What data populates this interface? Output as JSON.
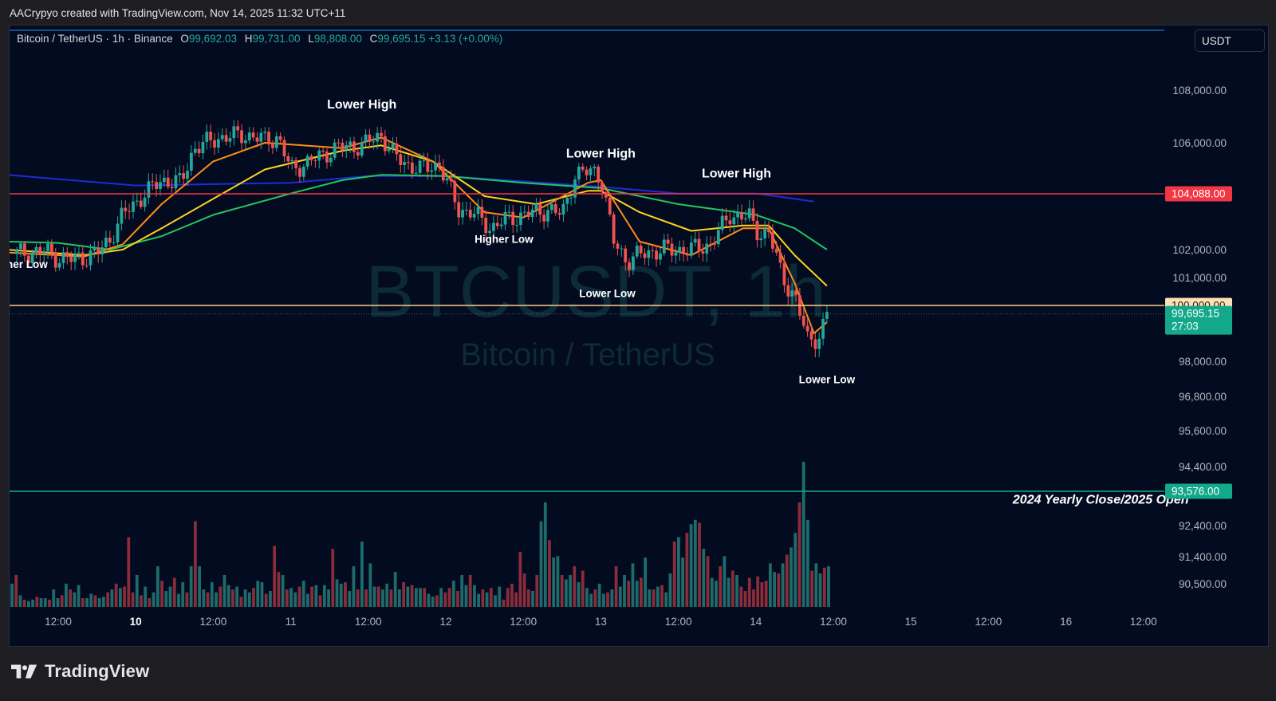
{
  "header": {
    "attribution": "AACrypyo created with TradingView.com, Nov 14, 2025 11:32 UTC+11"
  },
  "legend": {
    "symbol": "Bitcoin / TetherUS · 1h · Binance",
    "open_label": "O",
    "open": "99,692.03",
    "high_label": "H",
    "high": "99,731.00",
    "low_label": "L",
    "low": "98,808.00",
    "close_label": "C",
    "close": "99,695.15",
    "change": "+3.13 (+0.00%)"
  },
  "currency": "USDT",
  "watermark": {
    "ticker": "BTCUSDT, 1h",
    "name": "Bitcoin / TetherUS"
  },
  "footer": {
    "brand": "TradingView"
  },
  "colors": {
    "background": "#020b20",
    "up": "#26a69a",
    "down": "#ef5350",
    "ema_fast": "#ff8c1a",
    "ema_mid": "#ffd21f",
    "ema_slow": "#22c55e",
    "ma_long": "#1e2bd9",
    "resistance": "#f23645",
    "round": "#ffcc80",
    "yearly": "#14a88a"
  },
  "chart_data": {
    "type": "candlestick",
    "title": "Bitcoin / TetherUS · 1h · Binance",
    "y_tick_labels": [
      "108,000.00",
      "106,000.00",
      "102,000.00",
      "101,000.00",
      "98,000.00",
      "96,800.00",
      "95,600.00",
      "94,400.00",
      "92,400.00",
      "91,400.00",
      "90,500.00"
    ],
    "y_ticks": [
      108000,
      106000,
      102000,
      101000,
      98000,
      96800,
      95600,
      94400,
      92400,
      91400,
      90500
    ],
    "x_tick_labels": [
      "12:00",
      "10",
      "12:00",
      "11",
      "12:00",
      "12",
      "12:00",
      "13",
      "12:00",
      "14",
      "12:00",
      "15",
      "12:00",
      "16",
      "12:00"
    ],
    "x_ticks": [
      "2025-11-09 12:00",
      "2025-11-10 00:00",
      "2025-11-10 12:00",
      "2025-11-11 00:00",
      "2025-11-11 12:00",
      "2025-11-12 00:00",
      "2025-11-12 12:00",
      "2025-11-13 00:00",
      "2025-11-13 12:00",
      "2025-11-14 00:00",
      "2025-11-14 12:00",
      "2025-11-15 00:00",
      "2025-11-15 12:00",
      "2025-11-16 00:00",
      "2025-11-16 12:00"
    ],
    "x_bold_ticks": [
      "10"
    ],
    "candle_close_path": [
      [
        "2025-11-09 05:00",
        101850
      ],
      [
        "2025-11-09 10:00",
        101950
      ],
      [
        "2025-11-09 12:00",
        101700
      ],
      [
        "2025-11-09 14:00",
        101650
      ],
      [
        "2025-11-09 18:00",
        101850
      ],
      [
        "2025-11-09 20:00",
        102400
      ],
      [
        "2025-11-09 22:00",
        103300
      ],
      [
        "2025-11-10 01:00",
        104000
      ],
      [
        "2025-11-10 04:00",
        104600
      ],
      [
        "2025-11-10 07:00",
        104500
      ],
      [
        "2025-11-10 09:00",
        105800
      ],
      [
        "2025-11-10 13:00",
        106200
      ],
      [
        "2025-11-10 17:00",
        106300
      ],
      [
        "2025-11-10 20:00",
        106100
      ],
      [
        "2025-11-10 22:00",
        106200
      ],
      [
        "2025-11-11 00:00",
        105000
      ],
      [
        "2025-11-11 03:00",
        105300
      ],
      [
        "2025-11-11 07:00",
        105800
      ],
      [
        "2025-11-11 11:00",
        105900
      ],
      [
        "2025-11-11 14:00",
        106300
      ],
      [
        "2025-11-11 16:00",
        105500
      ],
      [
        "2025-11-11 18:00",
        105200
      ],
      [
        "2025-11-11 20:00",
        105000
      ],
      [
        "2025-11-11 23:00",
        105200
      ],
      [
        "2025-11-12 00:00",
        104600
      ],
      [
        "2025-11-12 02:00",
        103500
      ],
      [
        "2025-11-12 04:00",
        103400
      ],
      [
        "2025-11-12 07:00",
        102800
      ],
      [
        "2025-11-12 09:00",
        103100
      ],
      [
        "2025-11-12 12:00",
        103300
      ],
      [
        "2025-11-12 16:00",
        103500
      ],
      [
        "2025-11-12 18:00",
        103300
      ],
      [
        "2025-11-12 20:00",
        104800
      ],
      [
        "2025-11-12 23:00",
        104950
      ],
      [
        "2025-11-13 00:00",
        104700
      ],
      [
        "2025-11-13 02:00",
        102300
      ],
      [
        "2025-11-13 04:00",
        101600
      ],
      [
        "2025-11-13 07:00",
        101900
      ],
      [
        "2025-11-13 10:00",
        102000
      ],
      [
        "2025-11-13 14:00",
        102000
      ],
      [
        "2025-11-13 17:00",
        102200
      ],
      [
        "2025-11-13 20:00",
        103300
      ],
      [
        "2025-11-13 23:00",
        103200
      ],
      [
        "2025-11-14 00:00",
        102700
      ],
      [
        "2025-11-14 02:00",
        102600
      ],
      [
        "2025-11-14 04:00",
        101100
      ],
      [
        "2025-11-14 06:00",
        100300
      ],
      [
        "2025-11-14 08:00",
        98800
      ],
      [
        "2025-11-14 10:00",
        98900
      ],
      [
        "2025-11-14 11:00",
        99695
      ]
    ],
    "series": [
      {
        "name": "",
        "role": "ma_long",
        "points": [
          [
            "2025-11-09 04:00",
            104800
          ],
          [
            "2025-11-10 00:00",
            104400
          ],
          [
            "2025-11-11 00:00",
            104500
          ],
          [
            "2025-11-11 12:00",
            104750
          ],
          [
            "2025-11-12 00:00",
            104750
          ],
          [
            "2025-11-13 00:00",
            104350
          ],
          [
            "2025-11-13 12:00",
            104100
          ],
          [
            "2025-11-14 00:00",
            104100
          ],
          [
            "2025-11-14 09:00",
            103800
          ]
        ]
      },
      {
        "name": "",
        "role": "ema_slow",
        "points": [
          [
            "2025-11-09 04:00",
            102300
          ],
          [
            "2025-11-09 12:00",
            102250
          ],
          [
            "2025-11-09 20:00",
            102000
          ],
          [
            "2025-11-10 04:00",
            102500
          ],
          [
            "2025-11-10 12:00",
            103300
          ],
          [
            "2025-11-11 00:00",
            104100
          ],
          [
            "2025-11-11 08:00",
            104600
          ],
          [
            "2025-11-11 14:00",
            104800
          ],
          [
            "2025-11-12 00:00",
            104750
          ],
          [
            "2025-11-12 12:00",
            104500
          ],
          [
            "2025-11-13 00:00",
            104300
          ],
          [
            "2025-11-13 12:00",
            103700
          ],
          [
            "2025-11-14 00:00",
            103300
          ],
          [
            "2025-11-14 06:00",
            102800
          ],
          [
            "2025-11-14 11:00",
            102000
          ]
        ]
      },
      {
        "name": "",
        "role": "ema_mid",
        "points": [
          [
            "2025-11-09 04:00",
            102000
          ],
          [
            "2025-11-09 16:00",
            101800
          ],
          [
            "2025-11-09 22:00",
            102000
          ],
          [
            "2025-11-10 04:00",
            102800
          ],
          [
            "2025-11-10 12:00",
            103900
          ],
          [
            "2025-11-10 20:00",
            105000
          ],
          [
            "2025-11-11 08:00",
            105700
          ],
          [
            "2025-11-11 14:00",
            105900
          ],
          [
            "2025-11-11 22:00",
            105300
          ],
          [
            "2025-11-12 06:00",
            104000
          ],
          [
            "2025-11-12 14:00",
            103700
          ],
          [
            "2025-11-12 22:00",
            104200
          ],
          [
            "2025-11-13 00:00",
            104200
          ],
          [
            "2025-11-13 06:00",
            103400
          ],
          [
            "2025-11-13 14:00",
            102700
          ],
          [
            "2025-11-13 22:00",
            102900
          ],
          [
            "2025-11-14 02:00",
            102900
          ],
          [
            "2025-11-14 06:00",
            101800
          ],
          [
            "2025-11-14 11:00",
            100700
          ]
        ]
      },
      {
        "name": "",
        "role": "ema_fast",
        "points": [
          [
            "2025-11-09 04:00",
            101900
          ],
          [
            "2025-11-09 16:00",
            101750
          ],
          [
            "2025-11-09 22:00",
            102200
          ],
          [
            "2025-11-10 04:00",
            103700
          ],
          [
            "2025-11-10 12:00",
            105300
          ],
          [
            "2025-11-10 20:00",
            106000
          ],
          [
            "2025-11-11 08:00",
            105800
          ],
          [
            "2025-11-11 14:00",
            106200
          ],
          [
            "2025-11-11 22:00",
            105300
          ],
          [
            "2025-11-12 06:00",
            103400
          ],
          [
            "2025-11-12 12:00",
            103200
          ],
          [
            "2025-11-12 22:00",
            104500
          ],
          [
            "2025-11-13 00:00",
            104600
          ],
          [
            "2025-11-13 06:00",
            102300
          ],
          [
            "2025-11-13 14:00",
            101800
          ],
          [
            "2025-11-13 22:00",
            102800
          ],
          [
            "2025-11-14 02:00",
            102800
          ],
          [
            "2025-11-14 06:00",
            100800
          ],
          [
            "2025-11-14 09:00",
            99000
          ],
          [
            "2025-11-14 11:00",
            99400
          ]
        ]
      }
    ],
    "volume_relative": [
      0.16,
      0.22,
      0.08,
      0.05,
      0.04,
      0.05,
      0.07,
      0.06,
      0.06,
      0.05,
      0.12,
      0.06,
      0.08,
      0.16,
      0.12,
      0.1,
      0.15,
      0.06,
      0.06,
      0.09,
      0.08,
      0.06,
      0.07,
      0.1,
      0.12,
      0.16,
      0.13,
      0.14,
      0.48,
      0.1,
      0.22,
      0.08,
      0.14,
      0.06,
      0.1,
      0.28,
      0.18,
      0.11,
      0.14,
      0.2,
      0.09,
      0.17,
      0.1,
      0.28,
      0.59,
      0.28,
      0.12,
      0.1,
      0.17,
      0.1,
      0.14,
      0.22,
      0.15,
      0.12,
      0.14,
      0.07,
      0.12,
      0.1,
      0.13,
      0.18,
      0.17,
      0.09,
      0.11,
      0.42,
      0.24,
      0.22,
      0.12,
      0.13,
      0.1,
      0.14,
      0.18,
      0.09,
      0.14,
      0.15,
      0.08,
      0.15,
      0.12,
      0.4,
      0.19,
      0.16,
      0.17,
      0.11,
      0.28,
      0.12,
      0.45,
      0.12,
      0.3,
      0.14,
      0.14,
      0.12,
      0.16,
      0.12,
      0.24,
      0.12,
      0.17,
      0.14,
      0.15,
      0.13,
      0.13,
      0.13,
      0.09,
      0.07,
      0.08,
      0.13,
      0.1,
      0.13,
      0.18,
      0.11,
      0.22,
      0.15,
      0.22,
      0.15,
      0.09,
      0.12,
      0.1,
      0.13,
      0.08,
      0.14,
      0.05,
      0.13,
      0.16,
      0.1,
      0.38,
      0.23,
      0.12,
      0.11,
      0.22,
      0.59,
      0.72,
      0.46,
      0.34,
      0.35,
      0.22,
      0.19,
      0.22,
      0.28,
      0.17,
      0.25,
      0.13,
      0.09,
      0.12,
      0.16,
      0.09,
      0.1,
      0.12,
      0.28,
      0.14,
      0.22,
      0.18,
      0.3,
      0.18,
      0.2,
      0.34,
      0.12,
      0.12,
      0.14,
      0.15,
      0.1,
      0.23,
      0.45,
      0.48,
      0.34,
      0.51,
      0.57,
      0.6,
      0.58,
      0.4,
      0.35,
      0.2,
      0.18,
      0.28,
      0.35,
      0.2,
      0.25,
      0.22,
      0.14,
      0.11,
      0.2,
      0.12,
      0.21,
      0.17,
      0.18,
      0.3,
      0.24,
      0.23,
      0.3,
      0.36,
      0.41,
      0.51,
      0.72,
      1.0,
      0.6,
      0.25,
      0.3,
      0.23,
      0.27,
      0.28
    ],
    "price_labels": [
      {
        "value": 104088,
        "text": "104,088.00",
        "role": "resistance"
      },
      {
        "value": 100000,
        "text": "100,000.00",
        "role": "round"
      },
      {
        "value": 99695.15,
        "text": "99,695.15",
        "sub": "27:03",
        "role": "last"
      },
      {
        "value": 93576,
        "text": "93,576.00",
        "role": "yearly"
      }
    ],
    "horizontal_lines": [
      {
        "value": 104088,
        "role": "resistance"
      },
      {
        "value": 100000,
        "role": "round"
      },
      {
        "value": 93576,
        "role": "yearly"
      }
    ],
    "annotations": [
      {
        "text": "Lower High",
        "x": "2025-11-11 11:00",
        "y": 107300,
        "size": "large"
      },
      {
        "text": "Lower High",
        "x": "2025-11-13 00:00",
        "y": 105450,
        "size": "large"
      },
      {
        "text": "Lower High",
        "x": "2025-11-13 21:00",
        "y": 104700,
        "size": "large"
      },
      {
        "text": "Higher Low",
        "x": "2025-11-12 09:00",
        "y": 102250,
        "size": "small"
      },
      {
        "text": "Lower Low",
        "x": "2025-11-13 01:00",
        "y": 100300,
        "size": "small"
      },
      {
        "text": "Lower Low",
        "x": "2025-11-14 11:00",
        "y": 97250,
        "size": "small"
      },
      {
        "text": "ner Low",
        "x": "2025-11-09 03:00",
        "y": 101350,
        "size": "small"
      },
      {
        "text": "2024 Yearly Close/2025 Open",
        "x": "2025-11-16 19:00",
        "y": 93150,
        "size": "italic"
      }
    ]
  }
}
